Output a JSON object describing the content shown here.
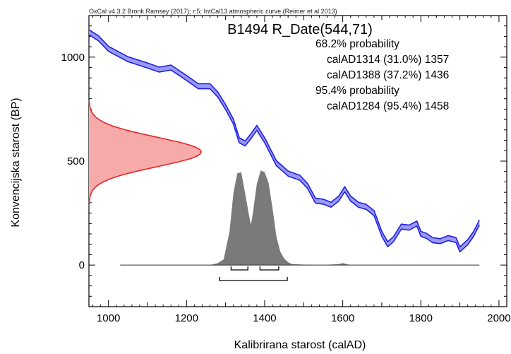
{
  "chart_data": {
    "type": "area",
    "header": "OxCal v4.3.2 Bronk Ramsey (2017); r:5; IntCal13 atmospheric curve (Reimer et al 2013)",
    "title": "B1494 R_Date(544,71)",
    "xlabel": "Kalibrirana starost (calAD)",
    "ylabel": "Konvencijska starost (BP)",
    "xlim": [
      950,
      2020
    ],
    "ylim": [
      -200,
      1200
    ],
    "x_ticks": [
      1000,
      1200,
      1400,
      1600,
      1800,
      2000
    ],
    "y_ticks": [
      0,
      500,
      1000
    ],
    "probability_text": [
      {
        "line": "68.2% probability",
        "indent": false
      },
      {
        "line": "calAD1314 (31.0%) 1357",
        "indent": true
      },
      {
        "line": "calAD1388 (37.2%) 1436",
        "indent": true
      },
      {
        "line": "95.4% probability",
        "indent": false
      },
      {
        "line": "calAD1284 (95.4%) 1458",
        "indent": true
      }
    ],
    "colors": {
      "calibration_curve": "#1f1fe6",
      "calibration_fill": "#9a9af5",
      "radiocarbon_fill": "#f7aaaa",
      "radiocarbon_line": "#e6262a",
      "posterior_fill": "#7a7a7a",
      "baseline": "#333333"
    },
    "calibration_curve": {
      "x": [
        950,
        975,
        1000,
        1050,
        1100,
        1130,
        1160,
        1200,
        1230,
        1260,
        1280,
        1300,
        1320,
        1335,
        1350,
        1365,
        1380,
        1400,
        1430,
        1460,
        1490,
        1510,
        1530,
        1550,
        1570,
        1590,
        1605,
        1620,
        1640,
        1660,
        1680,
        1700,
        1715,
        1730,
        1750,
        1770,
        1790,
        1800,
        1815,
        1830,
        1850,
        1870,
        1890,
        1900,
        1920,
        1935,
        1950
      ],
      "y": [
        1120,
        1090,
        1040,
        990,
        960,
        940,
        950,
        900,
        860,
        860,
        820,
        760,
        690,
        600,
        585,
        620,
        660,
        600,
        490,
        440,
        420,
        380,
        310,
        305,
        290,
        320,
        365,
        320,
        290,
        280,
        250,
        150,
        100,
        125,
        185,
        180,
        200,
        150,
        140,
        120,
        115,
        130,
        120,
        75,
        110,
        150,
        205
      ],
      "band": 12
    },
    "radiocarbon_date": {
      "mean": 544,
      "sigma": 71,
      "range": [
        300,
        790
      ],
      "scale": 115
    },
    "posterior": {
      "x": [
        1030,
        1200,
        1260,
        1280,
        1295,
        1310,
        1320,
        1330,
        1340,
        1350,
        1360,
        1365,
        1370,
        1380,
        1390,
        1400,
        1410,
        1420,
        1430,
        1440,
        1450,
        1460,
        1470,
        1500,
        1550,
        1590,
        1600,
        1610,
        1620,
        1700,
        1950
      ],
      "y": [
        0,
        0,
        0,
        0.02,
        0.06,
        0.35,
        0.75,
        0.96,
        0.97,
        0.75,
        0.52,
        0.42,
        0.55,
        0.85,
        0.99,
        0.97,
        0.86,
        0.6,
        0.3,
        0.14,
        0.07,
        0.03,
        0.01,
        0.005,
        0,
        0.01,
        0.02,
        0.01,
        0,
        0,
        0
      ],
      "peak_height": 460
    },
    "ranges_68": [
      [
        1314,
        1357
      ],
      [
        1388,
        1436
      ]
    ],
    "ranges_95": [
      [
        1284,
        1458
      ]
    ]
  }
}
